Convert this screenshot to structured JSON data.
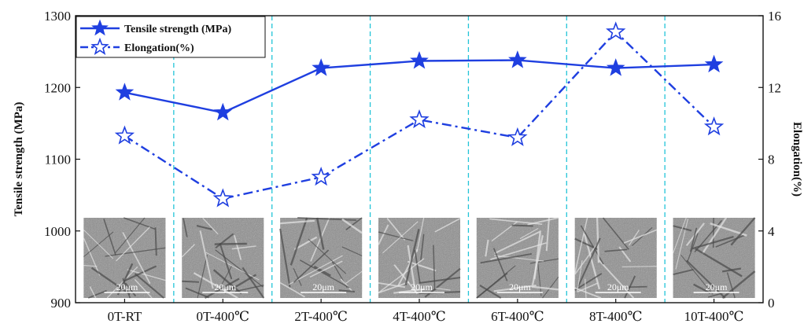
{
  "chart_data": {
    "type": "line",
    "categories": [
      "0T-RT",
      "0T-400℃",
      "2T-400℃",
      "4T-400℃",
      "6T-400℃",
      "8T-400℃",
      "10T-400℃"
    ],
    "series": [
      {
        "name": "Tensile strength (MPa)",
        "axis": "left",
        "values": [
          1193,
          1165,
          1227,
          1237,
          1238,
          1227,
          1232
        ],
        "line_style": "solid",
        "marker": "filled-star",
        "color": "#1f3fe0"
      },
      {
        "name": "Elongation(%)",
        "axis": "right",
        "values": [
          9.3,
          5.8,
          7.0,
          10.2,
          9.2,
          15.1,
          9.8
        ],
        "line_style": "dash-dot",
        "marker": "hollow-star",
        "color": "#1f3fe0"
      }
    ],
    "ylabel": "Tensile strength (MPa)",
    "ylim": [
      900,
      1300
    ],
    "yticks": [
      "900",
      "1000",
      "1100",
      "1200",
      "1300"
    ],
    "y2label": "Elongation(%)",
    "y2lim": [
      0,
      16
    ],
    "y2ticks": [
      "0",
      "4",
      "8",
      "12",
      "16"
    ],
    "legend_position": "top-left",
    "grid": "vertical dashed separators between categories",
    "separator_color": "#22c4d8",
    "inset_images": {
      "count": 7,
      "description": "micrograph",
      "scale_bar_label": "20μm"
    }
  }
}
